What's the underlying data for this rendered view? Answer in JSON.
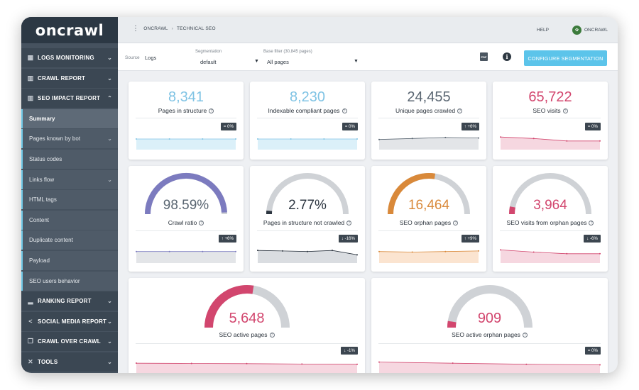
{
  "app": {
    "logo": "oncrawl"
  },
  "header": {
    "breadcrumb": [
      "ONCRAWL",
      "TECHNICAL SEO"
    ],
    "help": "HELP",
    "user": "ONCRAWL"
  },
  "sidebar": {
    "items": [
      {
        "label": "LOGS MONITORING",
        "type": "section",
        "icon": "calendar-icon",
        "expanded": false
      },
      {
        "label": "CRAWL REPORT",
        "type": "section",
        "icon": "bar-chart-icon",
        "expanded": false
      },
      {
        "label": "SEO IMPACT REPORT",
        "type": "section",
        "icon": "bar-chart-icon",
        "expanded": true
      },
      {
        "label": "Summary",
        "type": "sub",
        "active": true
      },
      {
        "label": "Pages known by bot",
        "type": "sub",
        "expandable": true
      },
      {
        "label": "Status codes",
        "type": "sub"
      },
      {
        "label": "Links flow",
        "type": "sub",
        "expandable": true
      },
      {
        "label": "HTML tags",
        "type": "sub"
      },
      {
        "label": "Content",
        "type": "sub"
      },
      {
        "label": "Duplicate content",
        "type": "sub"
      },
      {
        "label": "Payload",
        "type": "sub"
      },
      {
        "label": "SEO users behavior",
        "type": "sub"
      },
      {
        "label": "RANKING REPORT",
        "type": "section",
        "icon": "signal-icon",
        "expanded": false
      },
      {
        "label": "SOCIAL MEDIA REPORT",
        "type": "section",
        "icon": "share-icon",
        "expanded": false
      },
      {
        "label": "CRAWL OVER CRAWL",
        "type": "section",
        "icon": "copy-icon",
        "expanded": false
      },
      {
        "label": "TOOLS",
        "type": "section",
        "icon": "tools-icon",
        "expanded": false
      }
    ]
  },
  "filters": {
    "source_label": "Source",
    "source_value": "Logs",
    "segmentation_label": "Segmentation",
    "segmentation_value": "default",
    "base_filter_label": "Base filter (30,845 pages)",
    "base_filter_value": "All pages",
    "configure_button": "CONFIGURE SEGMENTATION"
  },
  "colors": {
    "blue": "#7fc3e4",
    "slate": "#5a6672",
    "pink": "#d2466e",
    "purple": "#7c7bbf",
    "dark": "#2c3540",
    "orange": "#d9893a",
    "gray_track": "#cfd2d6"
  },
  "kpis": [
    {
      "value": "8,341",
      "label": "Pages in structure",
      "badge": "= 0%",
      "color": "#7fc3e4",
      "fill": "#dbf0f9",
      "trend": [
        0.5,
        0.5,
        0.5,
        0.5
      ]
    },
    {
      "value": "8,230",
      "label": "Indexable compliant pages",
      "badge": "= 0%",
      "color": "#7fc3e4",
      "fill": "#dbf0f9",
      "trend": [
        0.5,
        0.5,
        0.5,
        0.5
      ]
    },
    {
      "value": "24,455",
      "label": "Unique pages crawled",
      "badge": "↑ +6%",
      "color": "#5a6672",
      "fill": "#e3e5e8",
      "trend": [
        0.55,
        0.45,
        0.35,
        0.4
      ]
    },
    {
      "value": "65,722",
      "label": "SEO visits",
      "badge": "= 0%",
      "color": "#d2466e",
      "fill": "#f6d7e0",
      "trend": [
        0.3,
        0.45,
        0.7,
        0.7
      ]
    }
  ],
  "gauges_small": [
    {
      "value": "98.59%",
      "label": "Crawl ratio",
      "badge": "↑ +6%",
      "color": "#7c7bbf",
      "text_color": "#5a6672",
      "ratio": 0.9859,
      "fill": "#e3e5e8",
      "trend": [
        0.5,
        0.5,
        0.5,
        0.5
      ]
    },
    {
      "value": "2.77%",
      "label": "Pages in structure not crawled",
      "badge": "↓ -16%",
      "color": "#2c3540",
      "text_color": "#2c3540",
      "ratio": 0.0277,
      "fill": "#dadde1",
      "trend": [
        0.4,
        0.45,
        0.5,
        0.4,
        0.8
      ]
    },
    {
      "value": "16,464",
      "label": "SEO orphan pages",
      "badge": "↑ +9%",
      "color": "#d9893a",
      "text_color": "#d9893a",
      "ratio": 0.55,
      "fill": "#fbe4d0",
      "trend": [
        0.5,
        0.55,
        0.5,
        0.45
      ]
    },
    {
      "value": "3,964",
      "label": "SEO visits from orphan pages",
      "badge": "↓ -6%",
      "color": "#d2466e",
      "text_color": "#d2466e",
      "ratio": 0.06,
      "fill": "#f6d7e0",
      "trend": [
        0.35,
        0.55,
        0.7,
        0.7
      ]
    }
  ],
  "gauges_large": [
    {
      "value": "5,648",
      "label": "SEO active pages",
      "badge": "↓ -1%",
      "color": "#d2466e",
      "text_color": "#d2466e",
      "ratio": 0.55,
      "fill": "#f6d7e0",
      "trend": [
        0.4,
        0.42,
        0.44,
        0.48,
        0.5
      ]
    },
    {
      "value": "909",
      "label": "SEO active orphan pages",
      "badge": "= 0%",
      "color": "#d2466e",
      "text_color": "#d2466e",
      "ratio": 0.05,
      "fill": "#f6d7e0",
      "trend": [
        0.3,
        0.4,
        0.5,
        0.55
      ]
    }
  ]
}
